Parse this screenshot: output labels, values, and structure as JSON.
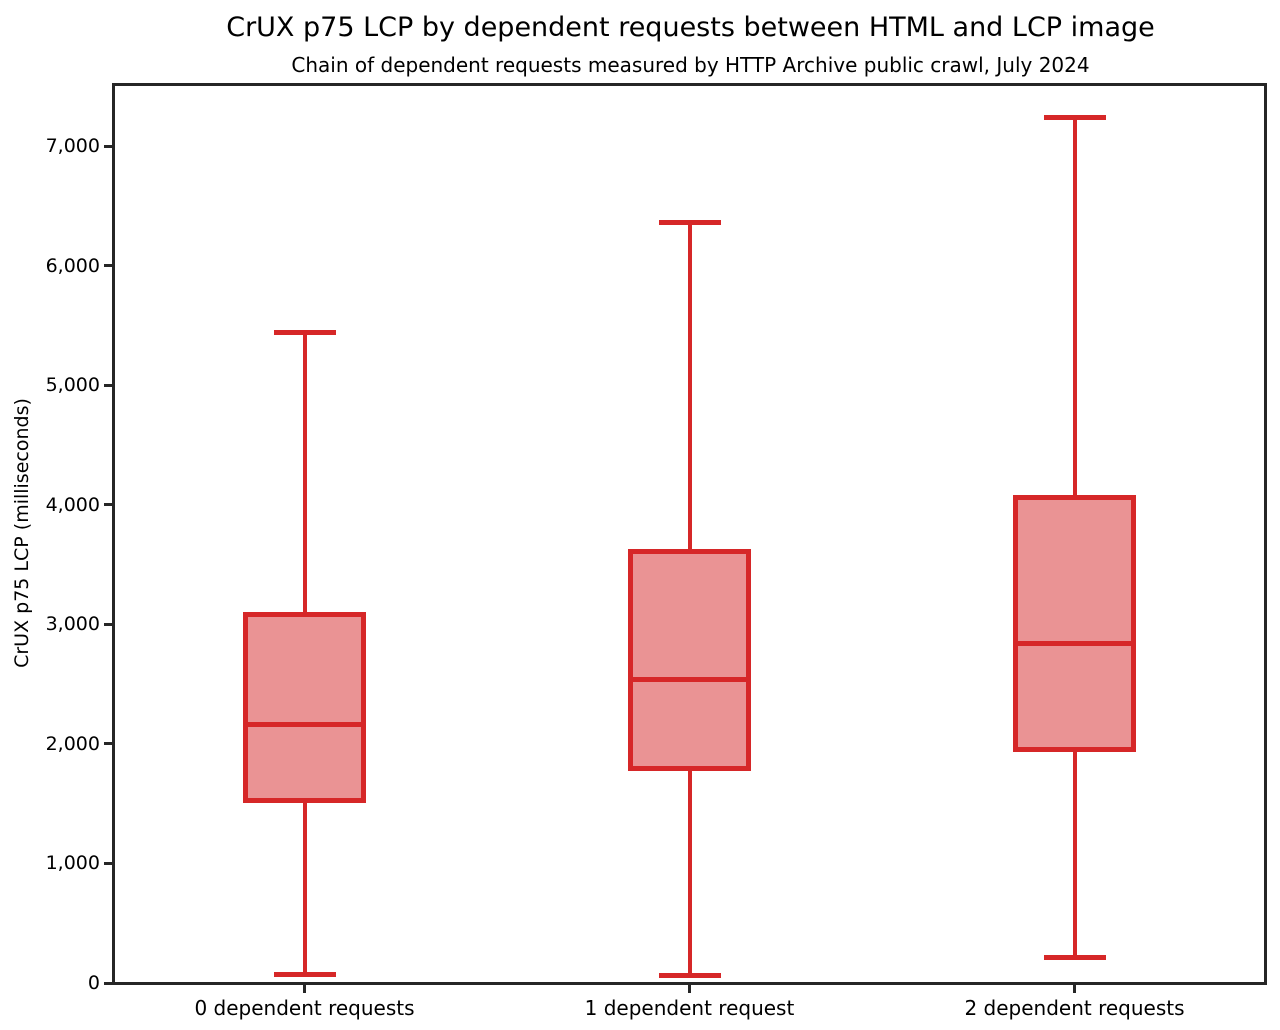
{
  "chart_data": {
    "type": "boxplot",
    "title": "CrUX p75 LCP by dependent requests between HTML and LCP image",
    "subtitle": "Chain of dependent requests measured by HTTP Archive public crawl, July 2024",
    "ylabel": "CrUX p75 LCP (milliseconds)",
    "xlabel": "",
    "grid": false,
    "legend": "none",
    "categories": [
      "0 dependent requests",
      "1 dependent request",
      "2 dependent requests"
    ],
    "series": [
      {
        "category": "0 dependent requests",
        "whisker_low": 70,
        "q1": 1530,
        "median": 2160,
        "q3": 3085,
        "whisker_high": 5440
      },
      {
        "category": "1 dependent request",
        "whisker_low": 65,
        "q1": 1790,
        "median": 2540,
        "q3": 3610,
        "whisker_high": 6360
      },
      {
        "category": "2 dependent requests",
        "whisker_low": 210,
        "q1": 1955,
        "median": 2840,
        "q3": 4065,
        "whisker_high": 7240
      }
    ],
    "ylim": [
      0,
      7520
    ],
    "yticks": {
      "values": [
        0,
        1000,
        2000,
        3000,
        4000,
        5000,
        6000,
        7000
      ],
      "labels": [
        "0",
        "1,000",
        "2,000",
        "3,000",
        "4,000",
        "5,000",
        "6,000",
        "7,000"
      ]
    },
    "colors": {
      "box_edge": "#d62728",
      "box_fill": "#ea9394",
      "spine": "#262626",
      "text": "#000000"
    }
  }
}
